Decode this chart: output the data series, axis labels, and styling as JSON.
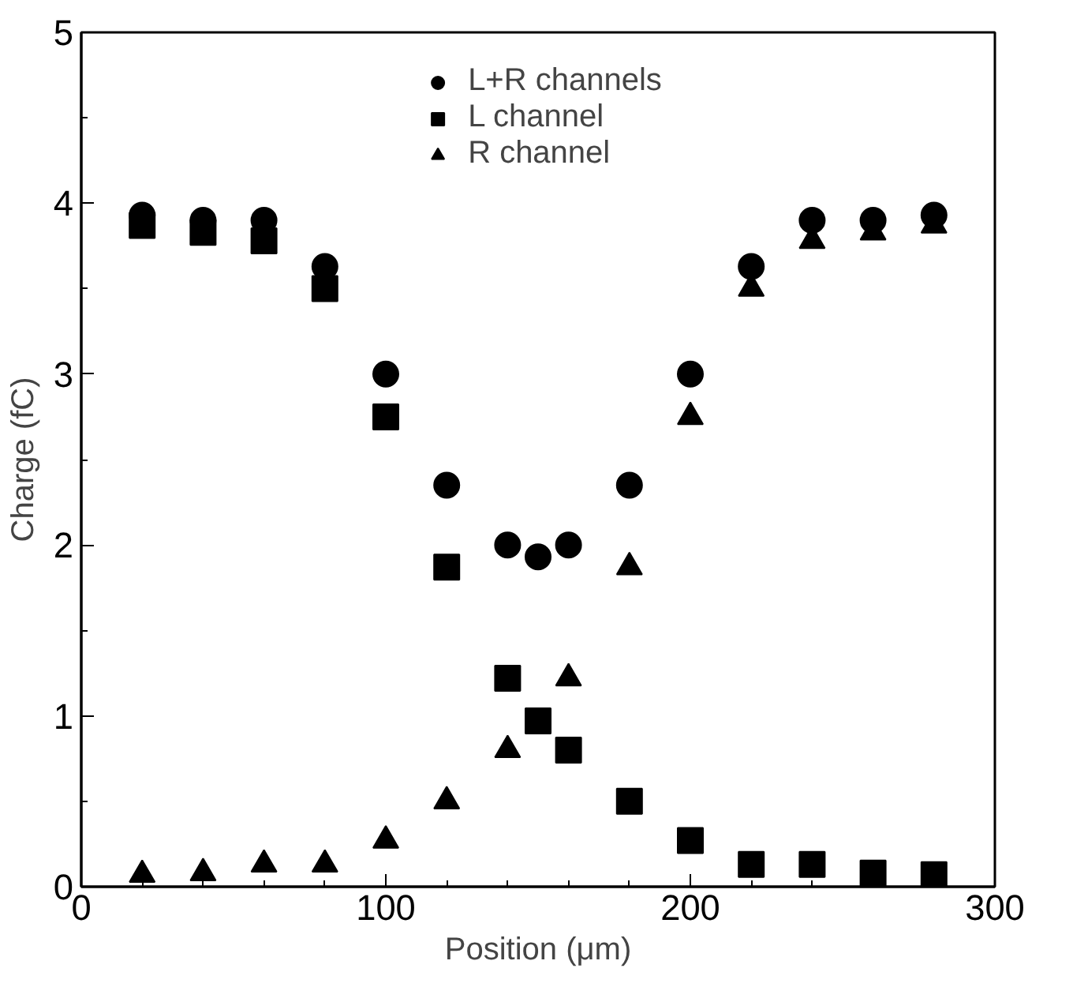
{
  "chart_data": {
    "type": "scatter",
    "xlabel": "Position (μm)",
    "ylabel": "Charge (fC)",
    "x": [
      20,
      40,
      60,
      80,
      100,
      120,
      140,
      150,
      160,
      180,
      200,
      220,
      240,
      260,
      280
    ],
    "series": [
      {
        "name": "L+R channels",
        "color": "#000000",
        "marker": "circle",
        "values": [
          3.93,
          3.9,
          3.9,
          3.63,
          3.0,
          2.35,
          2.0,
          1.93,
          2.0,
          2.35,
          3.0,
          3.63,
          3.9,
          3.9,
          3.93
        ]
      },
      {
        "name": "L channel",
        "color": "#000000",
        "marker": "square",
        "values": [
          3.87,
          3.83,
          3.78,
          3.5,
          2.75,
          1.87,
          1.22,
          0.97,
          0.8,
          0.5,
          0.27,
          0.13,
          0.13,
          0.08,
          0.07
        ]
      },
      {
        "name": "R channel",
        "color": "#000000",
        "marker": "triangle",
        "values": [
          0.07,
          0.08,
          0.13,
          0.13,
          0.27,
          0.5,
          0.8,
          null,
          1.22,
          1.87,
          2.75,
          3.5,
          3.78,
          3.83,
          3.87
        ]
      }
    ],
    "xlim": [
      0,
      300
    ],
    "ylim": [
      0,
      5
    ],
    "xticks": [
      0,
      100,
      200,
      300
    ],
    "yticks": [
      0,
      1,
      2,
      3,
      4,
      5
    ],
    "grid": false,
    "legend": "top"
  }
}
